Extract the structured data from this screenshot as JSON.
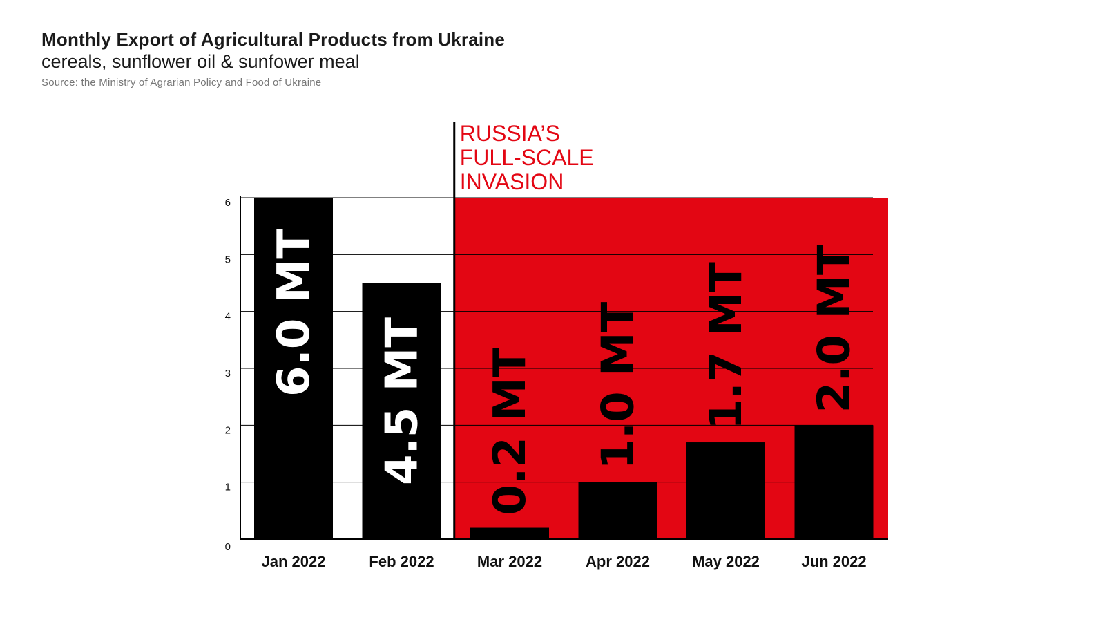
{
  "header": {
    "title": "Monthly Export of Agricultural Products from Ukraine",
    "subtitle": "cereals, sunflower oil & sunfower meal",
    "source": "Source: the Ministry of Agrarian Policy and Food of Ukraine"
  },
  "colors": {
    "bar": "#000000",
    "war_background": "#e30613",
    "label_on_dark": "#ffffff",
    "label_on_red": "#000000",
    "annotation": "#e30613"
  },
  "chart_data": {
    "type": "bar",
    "title": "Monthly Export of Agricultural Products from Ukraine",
    "subtitle": "cereals, sunflower oil & sunfower meal",
    "xlabel": "",
    "ylabel": "",
    "categories": [
      "Jan 2022",
      "Feb 2022",
      "Mar 2022",
      "Apr 2022",
      "May 2022",
      "Jun 2022"
    ],
    "series": [
      {
        "values": [
          6.0,
          4.5,
          0.2,
          1.0,
          1.7,
          2.0
        ],
        "labels": [
          "6.0 MT",
          "4.5 MT",
          "0.2 MT",
          "1.0 MT",
          "1.7 MT",
          "2.0 MT"
        ]
      }
    ],
    "ylim": [
      0,
      6
    ],
    "yticks": [
      "0",
      "1",
      "2",
      "3",
      "4",
      "5",
      "6"
    ],
    "grid": true,
    "legend": "none",
    "annotation": {
      "text_lines": [
        "RUSSIA’S",
        "FULL-SCALE",
        "INVASION"
      ],
      "starts_at_category": "Mar 2022",
      "shaded_region": "Mar 2022 – Jun 2022"
    }
  }
}
